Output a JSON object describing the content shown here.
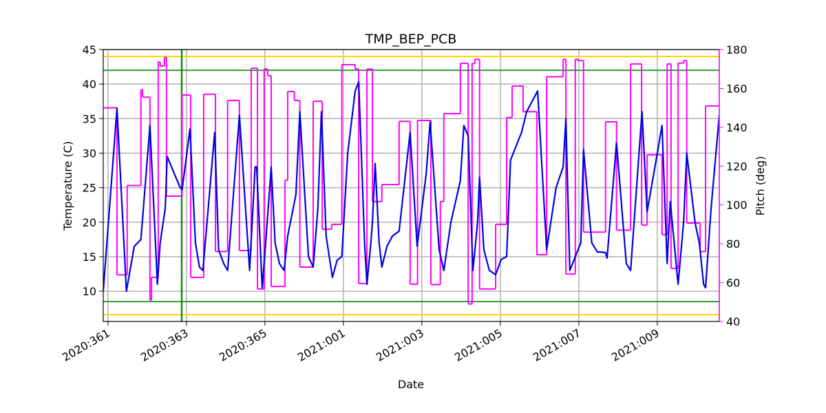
{
  "chart_data": {
    "type": "line",
    "title": "TMP_BEP_PCB",
    "x_label": "Date",
    "y_label": "Temperature (C)",
    "y2_label": "Pitch (deg)",
    "xlim": [
      360.88,
      376.58
    ],
    "xticks": [
      {
        "value": 361,
        "label": "2020:361"
      },
      {
        "value": 363,
        "label": "2020:363"
      },
      {
        "value": 365,
        "label": "2020:365"
      },
      {
        "value": 367,
        "label": "2021:001"
      },
      {
        "value": 369,
        "label": "2021:003"
      },
      {
        "value": 371,
        "label": "2021:005"
      },
      {
        "value": 373,
        "label": "2021:007"
      },
      {
        "value": 375,
        "label": "2021:009"
      }
    ],
    "ylim": [
      5.62,
      45
    ],
    "yticks": [
      10,
      15,
      20,
      25,
      30,
      35,
      40,
      45
    ],
    "y2lim": [
      40,
      180
    ],
    "y2ticks": [
      40,
      60,
      80,
      100,
      120,
      140,
      160,
      180
    ],
    "y2_color": "#ff00ff",
    "grid": true,
    "hlines": [
      {
        "value": 44,
        "color": "#ffd700"
      },
      {
        "value": 6.6,
        "color": "#ffd700"
      },
      {
        "value": 42,
        "color": "#2ca02c"
      },
      {
        "value": 8.5,
        "color": "#2ca02c"
      }
    ],
    "vlines": [
      {
        "value": 362.88,
        "color": "#138a13"
      }
    ],
    "series": [
      {
        "name": "Temperature",
        "color": "#0000e0",
        "axis": "y",
        "x": [
          360.88,
          361.23,
          361.47,
          361.67,
          361.84,
          362.07,
          362.26,
          362.33,
          362.46,
          362.51,
          362.84,
          362.89,
          363.09,
          363.23,
          363.33,
          363.42,
          363.72,
          363.82,
          363.95,
          364.05,
          364.35,
          364.61,
          364.75,
          364.79,
          364.93,
          365.02,
          365.16,
          365.26,
          365.37,
          365.49,
          365.58,
          365.79,
          365.89,
          366.11,
          366.23,
          366.35,
          366.44,
          366.56,
          366.72,
          366.84,
          366.96,
          367.11,
          367.3,
          367.39,
          367.54,
          367.6,
          367.7,
          367.74,
          367.81,
          367.91,
          367.98,
          368.11,
          368.25,
          368.42,
          368.7,
          368.88,
          369.11,
          369.21,
          369.44,
          369.56,
          369.74,
          369.98,
          370.07,
          370.18,
          370.3,
          370.42,
          370.47,
          370.58,
          370.72,
          370.88,
          371.02,
          371.16,
          371.26,
          371.54,
          371.67,
          371.95,
          372.18,
          372.42,
          372.6,
          372.67,
          372.77,
          373.05,
          373.12,
          373.33,
          373.47,
          373.68,
          373.72,
          373.96,
          374.21,
          374.32,
          374.61,
          374.74,
          375.0,
          375.12,
          375.25,
          375.33,
          375.53,
          375.67,
          375.75,
          375.96,
          376.07,
          376.18,
          376.23,
          376.37,
          376.58
        ],
        "values": [
          10,
          36.5,
          10,
          16.5,
          17.5,
          34,
          11,
          17,
          22,
          29.5,
          25,
          24.7,
          33.5,
          17,
          13.5,
          13,
          33,
          16,
          14,
          13,
          35.5,
          13,
          28,
          28,
          10.5,
          17,
          28,
          17,
          14,
          13,
          18,
          24,
          36,
          15,
          13.5,
          22,
          36,
          18,
          12,
          14.5,
          15,
          30,
          39,
          40.3,
          17,
          11,
          17,
          20,
          28.5,
          17,
          13.5,
          16.5,
          18,
          18.7,
          33,
          16.5,
          27,
          34.5,
          16,
          13,
          20,
          26,
          34,
          32.5,
          13,
          20,
          26.5,
          16,
          13,
          12.4,
          14.6,
          15,
          29,
          33,
          36,
          39,
          16,
          25,
          28,
          35,
          13,
          17,
          30.5,
          17,
          15.7,
          15.6,
          14.8,
          31.5,
          14,
          13,
          36,
          21.5,
          30,
          34,
          14,
          23,
          11,
          20,
          30,
          20,
          17,
          11,
          10.5,
          22,
          35.5
        ]
      },
      {
        "name": "Pitch",
        "color": "#ff00ff",
        "axis": "y2",
        "drawstyle": "steps-post",
        "x": [
          360.88,
          361.23,
          361.49,
          361.84,
          361.88,
          362.07,
          362.11,
          362.28,
          362.33,
          362.44,
          362.49,
          362.89,
          363.11,
          363.44,
          363.74,
          364.05,
          364.35,
          364.65,
          364.81,
          364.98,
          365.07,
          365.16,
          365.51,
          365.58,
          365.75,
          365.89,
          366.23,
          366.46,
          366.7,
          366.96,
          367.3,
          367.39,
          367.6,
          367.74,
          367.98,
          368.42,
          368.7,
          368.89,
          369.23,
          369.47,
          369.56,
          369.98,
          370.18,
          370.28,
          370.35,
          370.47,
          370.88,
          371.16,
          371.3,
          371.58,
          371.93,
          372.18,
          372.6,
          372.67,
          372.91,
          372.98,
          373.12,
          373.68,
          373.96,
          374.32,
          374.6,
          374.74,
          375.12,
          375.25,
          375.35,
          375.53,
          375.67,
          375.75,
          376.09,
          376.23,
          376.58
        ],
        "values": [
          150,
          64,
          110,
          159.4,
          155.5,
          51,
          62.7,
          173.6,
          171.5,
          176,
          104.5,
          156.6,
          62.7,
          157,
          76,
          153.8,
          76.5,
          170.4,
          56.7,
          170,
          166.5,
          58,
          112.7,
          158.4,
          153.8,
          68,
          153.4,
          87.5,
          90,
          172.2,
          170,
          59.5,
          170,
          101.7,
          110.5,
          143,
          59.2,
          143.5,
          59,
          101.7,
          147,
          172.9,
          49,
          172.9,
          175,
          56.7,
          90,
          145,
          161.2,
          148,
          74.4,
          166,
          175,
          64.4,
          175,
          174.3,
          86,
          142.8,
          87,
          172.6,
          89.6,
          125.8,
          84.7,
          172.6,
          67.3,
          173,
          174.3,
          90.7,
          76,
          151,
          151
        ]
      }
    ]
  }
}
